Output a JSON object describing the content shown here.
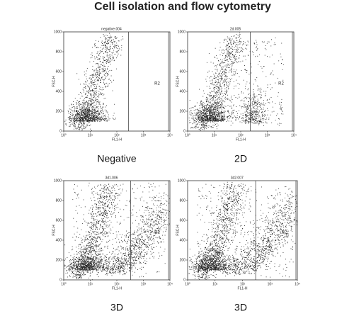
{
  "title": "Cell isolation and flow cytometry",
  "yticks": [
    "0",
    "200",
    "400",
    "600",
    "800",
    "1000"
  ],
  "xticks": [
    "10⁰",
    "10¹",
    "10²",
    "10³",
    "10⁴"
  ],
  "panels": [
    {
      "plot_title": "negative.004",
      "y_label": "FSC-H",
      "x_label": "FL1-H",
      "region": "R2",
      "caption": "Negative"
    },
    {
      "plot_title": "2d.005",
      "y_label": "FSC-H",
      "x_label": "FL1-H",
      "region": "R2",
      "caption": "2D"
    },
    {
      "plot_title": "3d1.006",
      "y_label": "FSC-H",
      "x_label": "FL1-H",
      "region": "R2",
      "caption": "3D"
    },
    {
      "plot_title": "3d2.007",
      "y_label": "FSC-H",
      "x_label": "FL1-H",
      "region": "R2",
      "caption": "3D"
    }
  ]
}
